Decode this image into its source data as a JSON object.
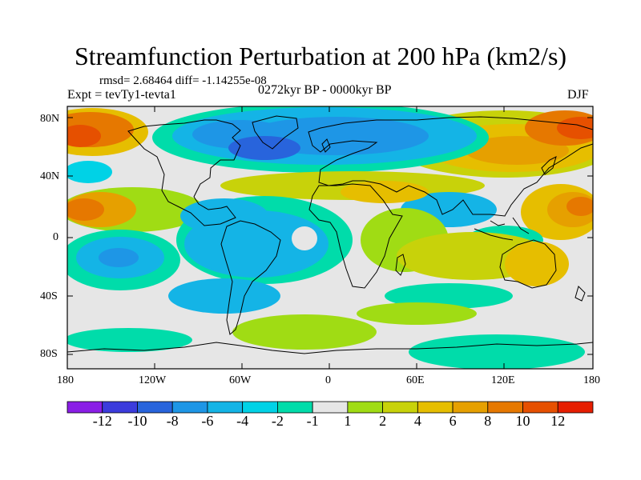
{
  "plot": {
    "title": "Streamfunction Perturbation at 200 hPa (km2/s)",
    "stats": "rmsd= 2.68464 diff= -1.14255e-08",
    "experiment": "Expt = tevTy1-tevta1",
    "period": "0272kyr BP - 0000kyr BP",
    "season": "DJF",
    "lat_labels": [
      "80N",
      "40N",
      "0",
      "40S",
      "80S"
    ],
    "lon_labels": [
      "180",
      "120W",
      "60W",
      "0",
      "60E",
      "120E",
      "180"
    ]
  },
  "colorbar": {
    "colors": [
      "#8a1ee6",
      "#3c3cdc",
      "#2864dc",
      "#1e96e6",
      "#14b4e6",
      "#00d2e6",
      "#00dcaa",
      "#e6e6e6",
      "#a0dc14",
      "#c8d20a",
      "#e6be00",
      "#e6a000",
      "#e67800",
      "#e65000",
      "#e61e00"
    ],
    "labels": [
      "-12",
      "-10",
      "-8",
      "-6",
      "-4",
      "-2",
      "-1",
      "1",
      "2",
      "4",
      "6",
      "8",
      "10",
      "12"
    ]
  },
  "chart_data": {
    "type": "filled-contour map",
    "title": "Streamfunction Perturbation at 200 hPa (km2/s)",
    "field": "streamfunction perturbation, 200 hPa",
    "units": "km2/s",
    "difference": "0272kyr BP - 0000kyr BP",
    "season": "DJF",
    "rmsd": 2.68464,
    "diff": -1.14255e-08,
    "xrange": [
      -180,
      180
    ],
    "yrange": [
      -90,
      90
    ],
    "contour_levels": [
      -12,
      -10,
      -8,
      -6,
      -4,
      -2,
      -1,
      1,
      2,
      4,
      6,
      8,
      10,
      12
    ],
    "anomalies": [
      {
        "lon": -170,
        "lat": 70,
        "value": 9
      },
      {
        "lon": -30,
        "lat": 65,
        "value": -7
      },
      {
        "lon": -60,
        "lat": 55,
        "value": -6
      },
      {
        "lon": 90,
        "lat": 55,
        "value": 8
      },
      {
        "lon": 165,
        "lat": 65,
        "value": 9
      },
      {
        "lon": -165,
        "lat": 20,
        "value": 7
      },
      {
        "lon": 155,
        "lat": 20,
        "value": 7
      },
      {
        "lon": -140,
        "lat": -15,
        "value": -6
      },
      {
        "lon": -50,
        "lat": -15,
        "value": -4
      },
      {
        "lon": 45,
        "lat": 35,
        "value": 3
      },
      {
        "lon": 50,
        "lat": 0,
        "value": 2
      },
      {
        "lon": 130,
        "lat": -20,
        "value": 3
      },
      {
        "lon": -30,
        "lat": -65,
        "value": 2
      }
    ]
  }
}
